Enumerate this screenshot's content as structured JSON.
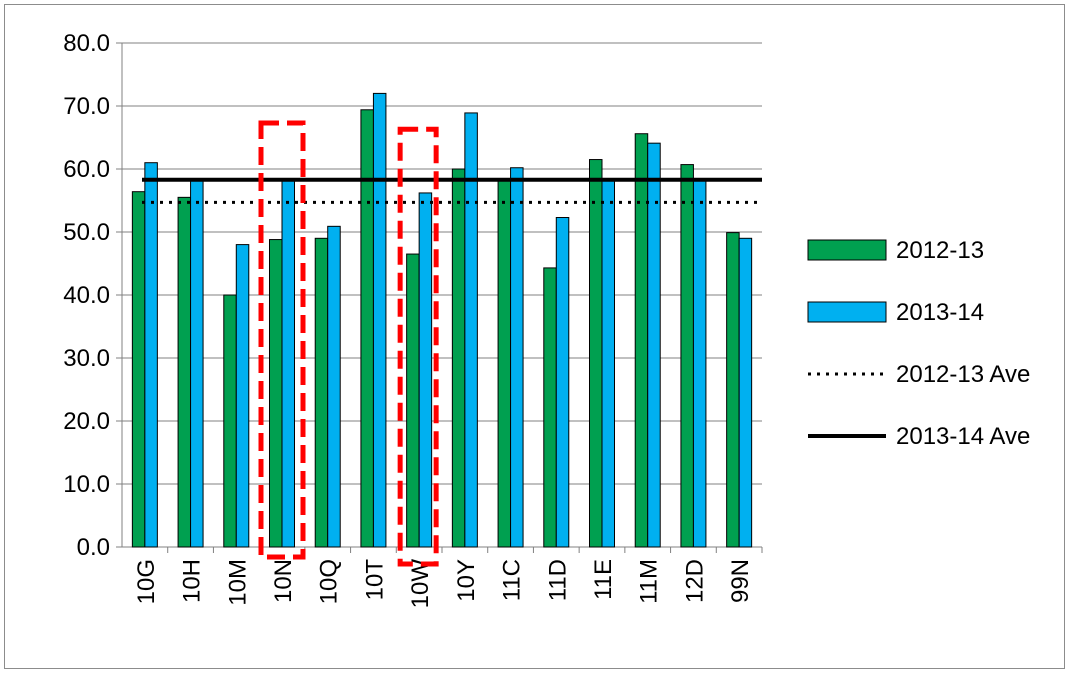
{
  "chart_data": {
    "type": "bar",
    "title": "",
    "xlabel": "",
    "ylabel": "",
    "ylim": [
      0,
      80
    ],
    "yticks": [
      "0.0",
      "10.0",
      "20.0",
      "30.0",
      "40.0",
      "50.0",
      "60.0",
      "70.0",
      "80.0"
    ],
    "grid": "horizontal",
    "categories": [
      "10G",
      "10H",
      "10M",
      "10N",
      "10Q",
      "10T",
      "10W",
      "10Y",
      "11C",
      "11D",
      "11E",
      "11M",
      "12D",
      "99N"
    ],
    "series": [
      {
        "name": "2012-13",
        "color": "#00A050",
        "values": [
          56.4,
          55.5,
          40.0,
          48.8,
          49.0,
          69.4,
          46.5,
          60.0,
          58.2,
          44.3,
          61.5,
          65.6,
          60.7,
          49.9
        ]
      },
      {
        "name": "2013-14",
        "color": "#00B0F0",
        "values": [
          61.0,
          58.2,
          48.0,
          58.2,
          50.9,
          72.0,
          56.2,
          68.9,
          60.2,
          52.3,
          58.2,
          64.1,
          58.2,
          49.0
        ]
      }
    ],
    "reference_lines": [
      {
        "name": "2012-13 Ave",
        "value": 54.7,
        "style": "dotted",
        "color": "#000000"
      },
      {
        "name": "2013-14 Ave",
        "value": 58.3,
        "style": "solid",
        "color": "#000000"
      }
    ],
    "highlights": [
      {
        "category": "10N",
        "style": "red-dashed-box",
        "color": "#FF0000"
      },
      {
        "category": "10W",
        "style": "red-dashed-box",
        "color": "#FF0000"
      }
    ],
    "legend": {
      "position": "right",
      "entries": [
        "2012-13",
        "2013-14",
        "2012-13 Ave",
        "2013-14 Ave"
      ]
    }
  }
}
